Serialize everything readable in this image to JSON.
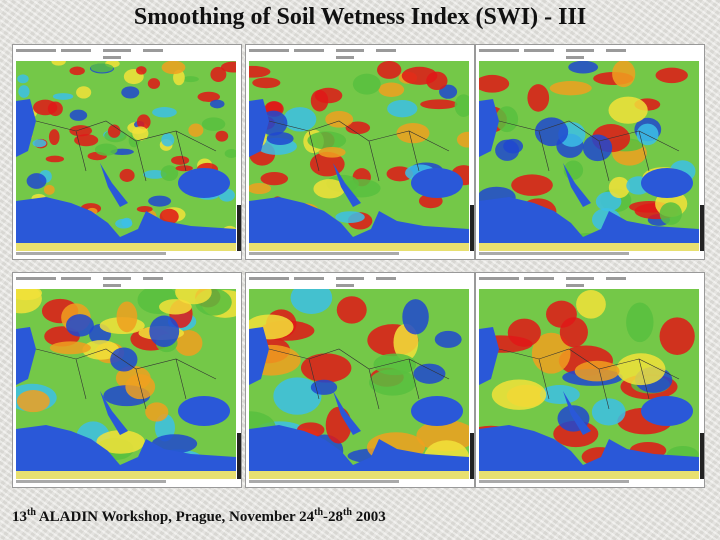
{
  "title": "Smoothing of Soil Wetness Index (SWI) - III",
  "footer": {
    "parts": [
      "13",
      "th",
      " ALADIN Workshop, Prague, November 24",
      "th",
      "-28",
      "th",
      " 2003"
    ]
  }
}
